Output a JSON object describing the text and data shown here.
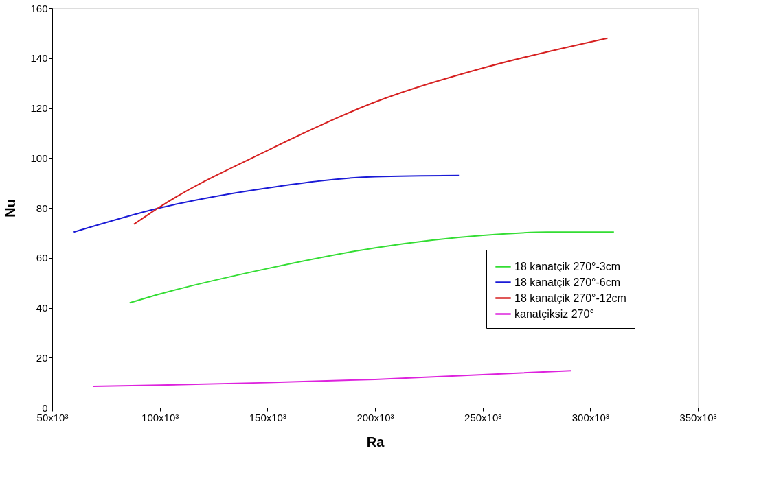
{
  "chart_data": {
    "type": "line",
    "xlabel": "Ra",
    "ylabel": "Nu",
    "xlim": [
      50000,
      350000
    ],
    "xticks": [
      {
        "value": 50000,
        "label": "50x10³"
      },
      {
        "value": 100000,
        "label": "100x10³"
      },
      {
        "value": 150000,
        "label": "150x10³"
      },
      {
        "value": 200000,
        "label": "200x10³"
      },
      {
        "value": 250000,
        "label": "250x10³"
      },
      {
        "value": 300000,
        "label": "300x10³"
      },
      {
        "value": 350000,
        "label": "350x10³"
      }
    ],
    "ylim": [
      0,
      160
    ],
    "yticks": [
      0,
      20,
      40,
      60,
      80,
      100,
      120,
      140,
      160
    ],
    "grid": false,
    "legend": "bottom right",
    "marker": "none",
    "line_style": "solid",
    "series": [
      {
        "name": "18 kanatçik 270°-3cm",
        "color": "#33dd33",
        "x": [
          86000,
          100000,
          150000,
          200000,
          250000,
          280000,
          311000
        ],
        "values": [
          42,
          45.5,
          55.7,
          64,
          69,
          70.3,
          70.3
        ]
      },
      {
        "name": "18 kanatçik 270°-6cm",
        "color": "#1a1ad6",
        "x": [
          60000,
          100000,
          150000,
          200000,
          239000
        ],
        "values": [
          70.3,
          80,
          88,
          92.5,
          93
        ]
      },
      {
        "name": "18 kanatçik 270°-12cm",
        "color": "#d62020",
        "x": [
          88000,
          100000,
          150000,
          200000,
          250000,
          308000
        ],
        "values": [
          73.5,
          80.4,
          103,
          122.4,
          136,
          148
        ]
      },
      {
        "name": "kanatçiksiz 270°",
        "color": "#dd22dd",
        "x": [
          69000,
          100000,
          150000,
          200000,
          250000,
          291000
        ],
        "values": [
          8.5,
          9,
          10,
          11.3,
          13.2,
          14.8
        ]
      }
    ]
  }
}
